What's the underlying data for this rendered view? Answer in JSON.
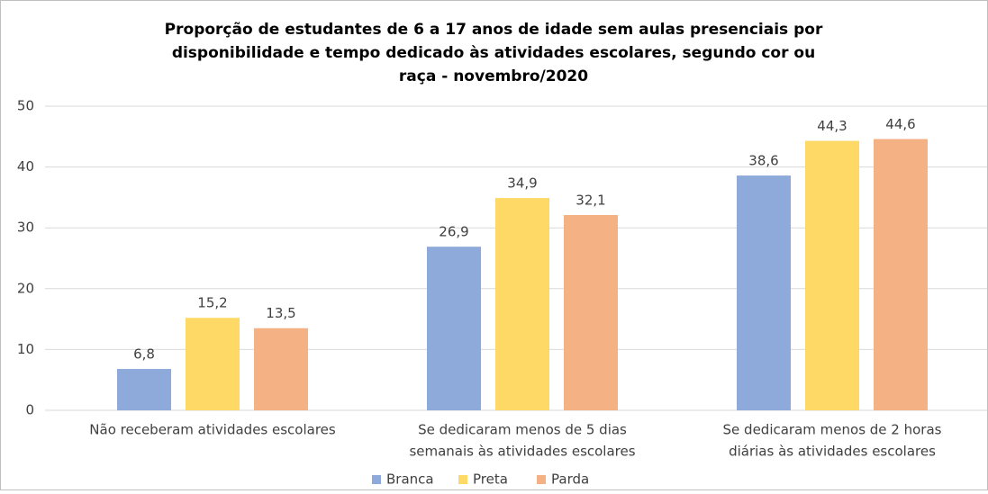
{
  "chart_data": {
    "type": "bar",
    "title": [
      "Proporção de estudantes de 6 a 17 anos de idade sem aulas presenciais por",
      "disponibilidade  e tempo dedicado às atividades escolares, segundo cor ou",
      "raça - novembro/2020"
    ],
    "categories": [
      [
        "Não receberam atividades escolares"
      ],
      [
        "Se dedicaram menos de 5 dias",
        "semanais às atividades escolares"
      ],
      [
        "Se dedicaram menos de 2 horas",
        "diárias às atividades escolares"
      ]
    ],
    "series": [
      {
        "name": "Branca",
        "color": "#8eaadb",
        "values": [
          6.8,
          26.9,
          38.6
        ],
        "value_labels": [
          "6,8",
          "26,9",
          "38,6"
        ]
      },
      {
        "name": "Preta",
        "color": "#ffd966",
        "values": [
          15.2,
          34.9,
          44.3
        ],
        "value_labels": [
          "15,2",
          "34,9",
          "44,3"
        ]
      },
      {
        "name": "Parda",
        "color": "#f4b183",
        "values": [
          13.5,
          32.1,
          44.6
        ],
        "value_labels": [
          "13,5",
          "32,1",
          "44,6"
        ]
      }
    ],
    "ylim": [
      0,
      50
    ],
    "yticks": [
      0,
      10,
      20,
      30,
      40,
      50
    ],
    "grid": true,
    "legend": "bottom"
  }
}
